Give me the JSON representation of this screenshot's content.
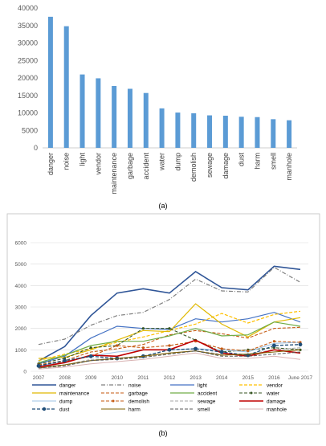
{
  "panel_labels": [
    "(a)",
    "(b)"
  ],
  "colors": {
    "bar": "#5b9bd5",
    "grid": "#d9d9d9",
    "axis_text": "#595959"
  },
  "chart_data": [
    {
      "type": "bar",
      "categories": [
        "danger",
        "noise",
        "light",
        "vendor",
        "maintenance",
        "garbage",
        "accident",
        "water",
        "dump",
        "demolish",
        "sewage",
        "damage",
        "dust",
        "harm",
        "smell",
        "manhole"
      ],
      "values": [
        37500,
        34800,
        21000,
        19900,
        17700,
        16900,
        15700,
        11300,
        10100,
        9900,
        9300,
        9200,
        8900,
        8800,
        8200,
        7900
      ],
      "yticks": [
        0,
        5000,
        10000,
        15000,
        20000,
        25000,
        30000,
        35000,
        40000
      ],
      "ylim": [
        0,
        40000
      ],
      "grid": false
    },
    {
      "type": "line",
      "x": [
        "2007",
        "2008",
        "2009",
        "2010",
        "2011",
        "2012",
        "2013",
        "2014",
        "2015",
        "2016",
        "June 2017"
      ],
      "yticks": [
        0,
        1000,
        2000,
        3000,
        4000,
        5000,
        6000
      ],
      "ylim": [
        0,
        6000
      ],
      "grid": true,
      "legend_position": "bottom",
      "series": [
        {
          "name": "danger",
          "color": "#2f5597",
          "dash": "solid",
          "width": 1.6,
          "marker": "",
          "values": [
            480,
            1150,
            2600,
            3650,
            3850,
            3650,
            4650,
            3900,
            3800,
            4900,
            4750
          ]
        },
        {
          "name": "noise",
          "color": "#808080",
          "dash": "dashdot",
          "width": 1.2,
          "marker": "",
          "values": [
            1250,
            1500,
            2150,
            2600,
            2750,
            3350,
            4300,
            3750,
            3700,
            4850,
            4150
          ]
        },
        {
          "name": "light",
          "color": "#4472c4",
          "dash": "solid",
          "width": 1.2,
          "marker": "",
          "values": [
            350,
            700,
            1550,
            2100,
            2000,
            1950,
            2450,
            2300,
            2450,
            2750,
            2300
          ]
        },
        {
          "name": "vendor",
          "color": "#ffc000",
          "dash": "dash",
          "width": 1.2,
          "marker": "",
          "values": [
            500,
            800,
            1050,
            1350,
            1600,
            1900,
            2200,
            2700,
            2250,
            2650,
            2800
          ]
        },
        {
          "name": "maintenance",
          "color": "#e0b800",
          "dash": "solid",
          "width": 1.2,
          "marker": "",
          "values": [
            600,
            650,
            1000,
            1450,
            1900,
            1850,
            3150,
            2200,
            1600,
            2300,
            2500
          ]
        },
        {
          "name": "garbage",
          "color": "#c55a11",
          "dash": "dash",
          "width": 1.1,
          "marker": "",
          "values": [
            300,
            500,
            900,
            1050,
            1250,
            1700,
            1900,
            1750,
            1550,
            2000,
            2050
          ]
        },
        {
          "name": "accident",
          "color": "#70ad47",
          "dash": "solid",
          "width": 1.2,
          "marker": "",
          "values": [
            400,
            750,
            1200,
            1400,
            1400,
            1650,
            2000,
            1650,
            1700,
            2300,
            2100
          ]
        },
        {
          "name": "water",
          "color": "#375623",
          "dash": "dash",
          "width": 1.1,
          "marker": "dot",
          "values": [
            350,
            600,
            1100,
            1200,
            2000,
            2000,
            1450,
            900,
            1000,
            1100,
            1000
          ]
        },
        {
          "name": "dump",
          "color": "#9dc3e6",
          "dash": "solid",
          "width": 1.1,
          "marker": "",
          "values": [
            250,
            450,
            700,
            900,
            1000,
            1000,
            1050,
            1000,
            900,
            1300,
            1350
          ]
        },
        {
          "name": "demolish",
          "color": "#c55a11",
          "dash": "dash",
          "width": 1.1,
          "marker": "dot",
          "values": [
            300,
            450,
            700,
            1200,
            1100,
            1200,
            1400,
            1050,
            950,
            1400,
            1350
          ]
        },
        {
          "name": "sewage",
          "color": "#a6a6a6",
          "dash": "dash",
          "width": 1.0,
          "marker": "",
          "values": [
            200,
            300,
            550,
            600,
            700,
            850,
            950,
            800,
            800,
            1000,
            1100
          ]
        },
        {
          "name": "damage",
          "color": "#c00000",
          "dash": "solid",
          "width": 1.6,
          "marker": "",
          "values": [
            200,
            400,
            750,
            700,
            1000,
            1000,
            1450,
            850,
            700,
            1000,
            850
          ]
        },
        {
          "name": "dust",
          "color": "#1f4e79",
          "dash": "dash",
          "width": 1.3,
          "marker": "circle",
          "values": [
            250,
            500,
            700,
            600,
            700,
            1000,
            1050,
            900,
            750,
            1200,
            1250
          ]
        },
        {
          "name": "harm",
          "color": "#7f6000",
          "dash": "solid",
          "width": 1.1,
          "marker": "",
          "values": [
            150,
            300,
            500,
            600,
            700,
            850,
            950,
            750,
            800,
            900,
            1000
          ]
        },
        {
          "name": "smell",
          "color": "#595959",
          "dash": "dash",
          "width": 1.0,
          "marker": "",
          "values": [
            150,
            250,
            500,
            550,
            650,
            800,
            950,
            700,
            700,
            800,
            900
          ]
        },
        {
          "name": "manhole",
          "color": "#d9b3b3",
          "dash": "solid",
          "width": 1.0,
          "marker": "",
          "values": [
            100,
            200,
            350,
            450,
            550,
            700,
            850,
            600,
            600,
            700,
            550
          ]
        }
      ]
    }
  ]
}
